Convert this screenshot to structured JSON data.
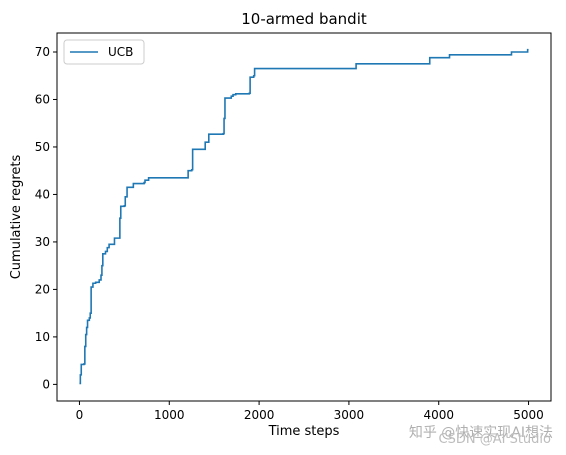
{
  "chart_data": {
    "type": "line",
    "title": "10-armed bandit",
    "xlabel": "Time steps",
    "ylabel": "Cumulative regrets",
    "xlim": [
      -250,
      5250
    ],
    "ylim": [
      -3.5,
      74
    ],
    "xticks": [
      0,
      1000,
      2000,
      3000,
      4000,
      5000
    ],
    "yticks": [
      0,
      10,
      20,
      30,
      40,
      50,
      60,
      70
    ],
    "legend": "top-left",
    "grid": false,
    "series": [
      {
        "name": "UCB",
        "color": "#1f77b4",
        "step": true,
        "points": [
          [
            0,
            0.2
          ],
          [
            10,
            2.0
          ],
          [
            20,
            4.2
          ],
          [
            50,
            4.3
          ],
          [
            60,
            8.0
          ],
          [
            70,
            10.5
          ],
          [
            80,
            12.0
          ],
          [
            90,
            13.5
          ],
          [
            110,
            14.0
          ],
          [
            120,
            15.0
          ],
          [
            130,
            20.5
          ],
          [
            150,
            21.3
          ],
          [
            180,
            21.5
          ],
          [
            220,
            22.0
          ],
          [
            240,
            23.0
          ],
          [
            250,
            25.0
          ],
          [
            260,
            27.5
          ],
          [
            290,
            28.0
          ],
          [
            310,
            28.8
          ],
          [
            330,
            29.5
          ],
          [
            380,
            29.5
          ],
          [
            390,
            30.8
          ],
          [
            440,
            30.8
          ],
          [
            450,
            35.0
          ],
          [
            460,
            37.5
          ],
          [
            500,
            37.6
          ],
          [
            510,
            39.5
          ],
          [
            530,
            41.5
          ],
          [
            590,
            41.5
          ],
          [
            600,
            42.3
          ],
          [
            720,
            42.5
          ],
          [
            730,
            43.0
          ],
          [
            760,
            43.0
          ],
          [
            770,
            43.5
          ],
          [
            1200,
            43.5
          ],
          [
            1210,
            45.0
          ],
          [
            1250,
            45.2
          ],
          [
            1260,
            49.5
          ],
          [
            1390,
            49.5
          ],
          [
            1400,
            51.0
          ],
          [
            1430,
            51.0
          ],
          [
            1440,
            52.7
          ],
          [
            1600,
            52.8
          ],
          [
            1610,
            56.0
          ],
          [
            1620,
            60.3
          ],
          [
            1680,
            60.3
          ],
          [
            1690,
            60.7
          ],
          [
            1710,
            61.0
          ],
          [
            1740,
            61.2
          ],
          [
            1890,
            61.3
          ],
          [
            1900,
            64.7
          ],
          [
            1940,
            65.0
          ],
          [
            1950,
            66.5
          ],
          [
            3070,
            66.5
          ],
          [
            3080,
            67.5
          ],
          [
            3890,
            67.5
          ],
          [
            3900,
            68.8
          ],
          [
            4110,
            68.8
          ],
          [
            4120,
            69.4
          ],
          [
            4800,
            69.4
          ],
          [
            4810,
            70.0
          ],
          [
            4980,
            70.0
          ],
          [
            4990,
            70.5
          ],
          [
            5000,
            70.5
          ]
        ]
      }
    ]
  },
  "watermarks": {
    "line1": "知乎 @快速实现AI想法",
    "line2": "CSDN @AI Studio"
  }
}
